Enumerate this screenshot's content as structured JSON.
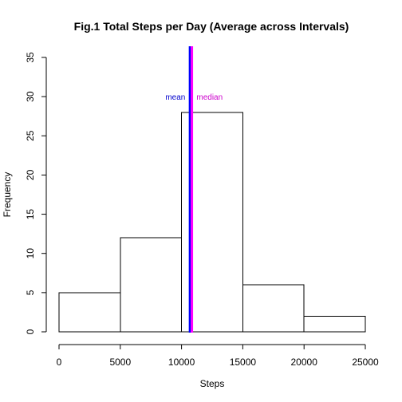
{
  "chart_data": {
    "type": "bar",
    "subtype": "histogram",
    "title": "Fig.1 Total Steps per Day (Average across Intervals)",
    "xlabel": "Steps",
    "ylabel": "Frequency",
    "bins": [
      {
        "start": 0,
        "end": 5000,
        "count": 5
      },
      {
        "start": 5000,
        "end": 10000,
        "count": 12
      },
      {
        "start": 10000,
        "end": 15000,
        "count": 28
      },
      {
        "start": 15000,
        "end": 20000,
        "count": 6
      },
      {
        "start": 20000,
        "end": 25000,
        "count": 2
      }
    ],
    "xlim": [
      0,
      25000
    ],
    "ylim": [
      0,
      35
    ],
    "xticks": [
      0,
      5000,
      10000,
      15000,
      20000,
      25000
    ],
    "yticks": [
      0,
      5,
      10,
      15,
      20,
      25,
      30,
      35
    ],
    "grid": false,
    "bar_fill": "#ffffff",
    "bar_stroke": "#000000",
    "annotations": [
      {
        "label": "mean",
        "value": 10766,
        "color": "#0000ff",
        "text_color": "#0000cc",
        "side": "left",
        "y": 30
      },
      {
        "label": "median",
        "value": 10766,
        "color": "#ff00ff",
        "text_color": "#cc00cc",
        "side": "right",
        "y": 30
      }
    ]
  }
}
